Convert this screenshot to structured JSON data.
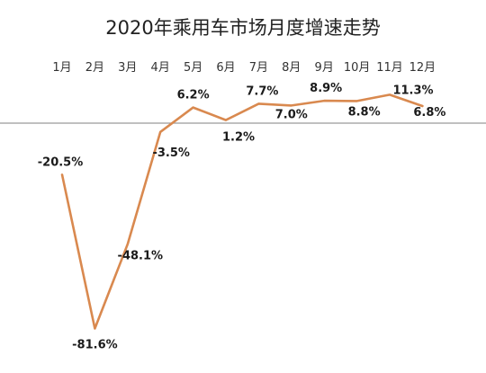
{
  "colors": {
    "line": "#D9894F",
    "axis": "#9A9A9A",
    "text": "#1a1a1a",
    "background": "#ffffff"
  },
  "chart_data": {
    "type": "line",
    "title": "2020年乘用车市场月度增速走势",
    "xlabel": "",
    "ylabel": "",
    "categories": [
      "1月",
      "2月",
      "3月",
      "4月",
      "5月",
      "6月",
      "7月",
      "8月",
      "9月",
      "10月",
      "11月",
      "12月"
    ],
    "series": [
      {
        "values": [
          -20.5,
          -81.6,
          -48.1,
          -3.5,
          6.2,
          1.2,
          7.7,
          7.0,
          8.9,
          8.8,
          11.3,
          6.8
        ],
        "labels": [
          "-20.5%",
          "-81.6%",
          "-48.1%",
          "-3.5%",
          "6.2%",
          "1.2%",
          "7.7%",
          "7.0%",
          "8.9%",
          "8.8%",
          "11.3%",
          "6.8%"
        ]
      }
    ],
    "ylim": [
      -81.6,
      11.3
    ],
    "grid": false,
    "legend": "none",
    "zero_line": true
  }
}
